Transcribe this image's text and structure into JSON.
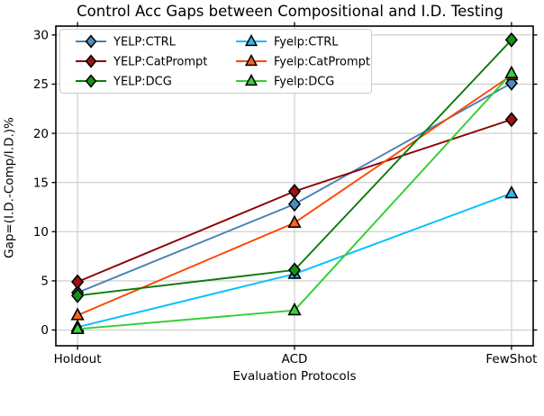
{
  "chart_data": {
    "type": "line",
    "title": "Control Acc Gaps between Compositional and I.D. Testing",
    "xlabel": "Evaluation Protocols",
    "ylabel": "Gap=(I.D.-Comp/I.D.)%",
    "categories": [
      "Holdout",
      "ACD",
      "FewShot"
    ],
    "yticks": [
      0,
      5,
      10,
      15,
      20,
      25,
      30
    ],
    "ylim": [
      -1.6,
      30.9
    ],
    "grid": true,
    "grid_color": "#cbcbcb",
    "legend_position": "upper left",
    "legend_columns": 2,
    "series": [
      {
        "name": "YELP:CTRL",
        "marker": "diamond",
        "color": "#4682B4",
        "fill": "#4f8cc0",
        "values": [
          3.8,
          12.8,
          25.1
        ]
      },
      {
        "name": "YELP:CatPrompt",
        "marker": "diamond",
        "color": "#8B0000",
        "fill": "#9e1414",
        "values": [
          4.9,
          14.1,
          21.4
        ]
      },
      {
        "name": "YELP:DCG",
        "marker": "diamond",
        "color": "#0b7a0b",
        "fill": "#189018",
        "values": [
          3.5,
          6.1,
          29.5
        ]
      },
      {
        "name": "Fyelp:CTRL",
        "marker": "triangle",
        "color": "#00BFFF",
        "fill": "#30b7f0",
        "values": [
          0.3,
          5.7,
          13.9
        ]
      },
      {
        "name": "Fyelp:CatPrompt",
        "marker": "triangle",
        "color": "#FF4500",
        "fill": "#fd6120",
        "values": [
          1.5,
          10.9,
          25.9
        ]
      },
      {
        "name": "Fyelp:DCG",
        "marker": "triangle",
        "color": "#32CD32",
        "fill": "#3ecc3e",
        "values": [
          0.1,
          2.0,
          26.1
        ]
      }
    ],
    "draw_order": [
      0,
      3,
      1,
      4,
      2,
      5
    ]
  }
}
